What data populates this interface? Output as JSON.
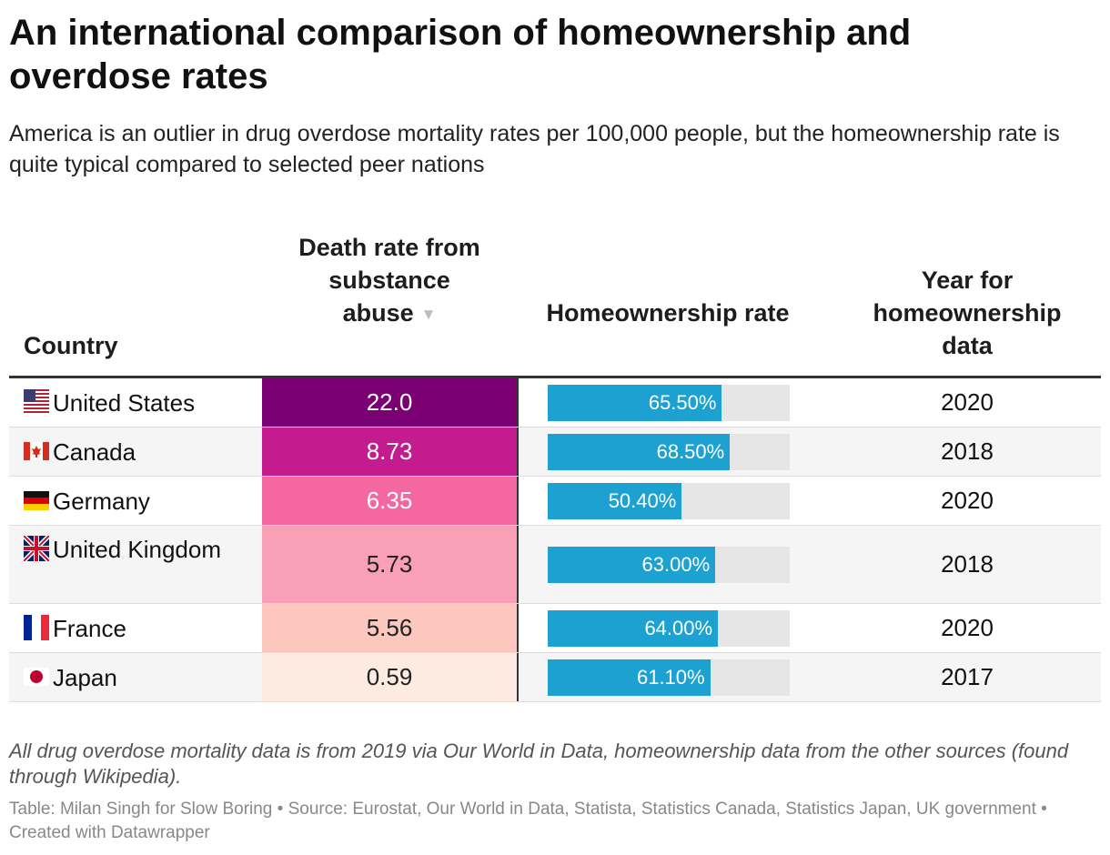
{
  "title": "An international comparison of homeownership and overdose rates",
  "subtitle": "America is an outlier in drug overdose mortality rates per 100,000 people, but the homeownership rate is quite typical compared to selected peer nations",
  "headers": {
    "country": "Country",
    "death": "Death rate from substance abuse",
    "sort_icon": "▼",
    "home": "Homeownership rate",
    "year": "Year for homeownership data"
  },
  "chart_data": {
    "type": "table",
    "columns": [
      "Country",
      "Death rate from substance abuse",
      "Homeownership rate",
      "Year for homeownership data"
    ],
    "sort": {
      "column": "Death rate from substance abuse",
      "order": "descending"
    },
    "rows": [
      {
        "country": "United States",
        "flag": "us-flag-icon",
        "death": "22.0",
        "death_color": "#7b0074",
        "death_text_color": "#ffffff",
        "home_label": "65.50%",
        "home_value": 65.5,
        "year": "2020"
      },
      {
        "country": "Canada",
        "flag": "canada-flag-icon",
        "death": "8.73",
        "death_color": "#c41c8e",
        "death_text_color": "#ffffff",
        "home_label": "68.50%",
        "home_value": 68.5,
        "year": "2018"
      },
      {
        "country": "Germany",
        "flag": "germany-flag-icon",
        "death": "6.35",
        "death_color": "#f567a0",
        "death_text_color": "#ffffff",
        "home_label": "50.40%",
        "home_value": 50.4,
        "year": "2020"
      },
      {
        "country": "United Kingdom",
        "flag": "uk-flag-icon",
        "death": "5.73",
        "death_color": "#f9a0b7",
        "death_text_color": "#222222",
        "home_label": "63.00%",
        "home_value": 63.0,
        "year": "2018"
      },
      {
        "country": "France",
        "flag": "france-flag-icon",
        "death": "5.56",
        "death_color": "#fbc7bf",
        "death_text_color": "#222222",
        "home_label": "64.00%",
        "home_value": 64.0,
        "year": "2020"
      },
      {
        "country": "Japan",
        "flag": "japan-flag-icon",
        "death": "0.59",
        "death_color": "#fdebe2",
        "death_text_color": "#222222",
        "home_label": "61.10%",
        "home_value": 61.1,
        "year": "2017"
      }
    ],
    "bar_color": "#1da1d0",
    "bar_max": 91
  },
  "notes": "All drug overdose mortality data is from 2019 via Our World in Data, homeownership data from the other sources (found through Wikipedia).",
  "credit": "Table: Milan Singh for Slow Boring • Source: Eurostat, Our World in Data, Statista, Statistics Canada, Statistics Japan, UK government • Created with Datawrapper"
}
